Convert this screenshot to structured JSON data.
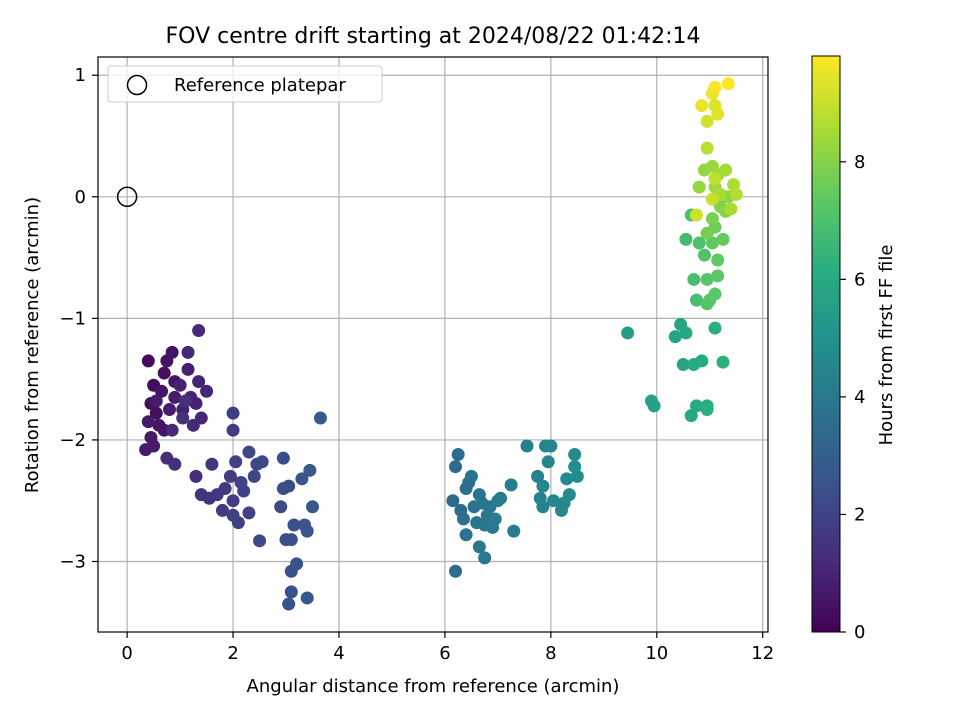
{
  "chart_data": {
    "type": "scatter",
    "title": "FOV centre drift starting at 2024/08/22 01:42:14",
    "xlabel": "Angular distance from reference (arcmin)",
    "ylabel": "Rotation from reference (arcmin)",
    "xlim": [
      -0.55,
      12.1
    ],
    "ylim": [
      -3.58,
      1.15
    ],
    "xticks": [
      0,
      2,
      4,
      6,
      8,
      10,
      12
    ],
    "yticks": [
      -3,
      -2,
      -1,
      0,
      1
    ],
    "grid": true,
    "legend": {
      "position": "top-left",
      "entries": [
        "Reference platepar"
      ]
    },
    "reference_point": {
      "x": 0,
      "y": 0
    },
    "colorbar": {
      "label": "Hours from first FF file",
      "colormap": "viridis",
      "range": [
        0,
        9.8
      ],
      "ticks": [
        0,
        2,
        4,
        6,
        8
      ]
    },
    "points": [
      {
        "x": 0.4,
        "y": -1.35,
        "c": 0.3
      },
      {
        "x": 0.5,
        "y": -1.55,
        "c": 0.3
      },
      {
        "x": 0.45,
        "y": -1.7,
        "c": 0.4
      },
      {
        "x": 0.55,
        "y": -1.78,
        "c": 0.4
      },
      {
        "x": 0.7,
        "y": -1.45,
        "c": 0.4
      },
      {
        "x": 0.75,
        "y": -1.35,
        "c": 0.5
      },
      {
        "x": 0.85,
        "y": -1.28,
        "c": 0.5
      },
      {
        "x": 0.9,
        "y": -1.52,
        "c": 0.5
      },
      {
        "x": 0.65,
        "y": -1.6,
        "c": 0.6
      },
      {
        "x": 0.6,
        "y": -1.88,
        "c": 0.6
      },
      {
        "x": 0.7,
        "y": -1.92,
        "c": 0.6
      },
      {
        "x": 0.4,
        "y": -1.85,
        "c": 0.7
      },
      {
        "x": 0.45,
        "y": -1.98,
        "c": 0.7
      },
      {
        "x": 0.35,
        "y": -2.08,
        "c": 0.7
      },
      {
        "x": 0.5,
        "y": -2.05,
        "c": 0.7
      },
      {
        "x": 0.55,
        "y": -1.68,
        "c": 0.8
      },
      {
        "x": 0.8,
        "y": -1.75,
        "c": 0.8
      },
      {
        "x": 0.9,
        "y": -1.65,
        "c": 0.8
      },
      {
        "x": 1.0,
        "y": -1.55,
        "c": 0.9
      },
      {
        "x": 1.05,
        "y": -1.75,
        "c": 0.9
      },
      {
        "x": 1.15,
        "y": -1.42,
        "c": 0.9
      },
      {
        "x": 1.2,
        "y": -1.65,
        "c": 1.0
      },
      {
        "x": 1.3,
        "y": -1.7,
        "c": 1.0
      },
      {
        "x": 1.35,
        "y": -1.52,
        "c": 1.0
      },
      {
        "x": 1.4,
        "y": -1.82,
        "c": 1.1
      },
      {
        "x": 1.5,
        "y": -1.6,
        "c": 1.1
      },
      {
        "x": 1.15,
        "y": -1.28,
        "c": 1.1
      },
      {
        "x": 1.35,
        "y": -1.1,
        "c": 1.2
      },
      {
        "x": 1.25,
        "y": -1.88,
        "c": 1.2
      },
      {
        "x": 0.85,
        "y": -1.92,
        "c": 1.2
      },
      {
        "x": 0.75,
        "y": -2.15,
        "c": 1.3
      },
      {
        "x": 0.9,
        "y": -2.2,
        "c": 1.3
      },
      {
        "x": 1.3,
        "y": -2.3,
        "c": 1.3
      },
      {
        "x": 1.05,
        "y": -1.82,
        "c": 1.4
      },
      {
        "x": 1.1,
        "y": -1.68,
        "c": 1.4
      },
      {
        "x": 1.4,
        "y": -2.45,
        "c": 1.5
      },
      {
        "x": 1.55,
        "y": -2.48,
        "c": 1.5
      },
      {
        "x": 1.6,
        "y": -2.2,
        "c": 1.6
      },
      {
        "x": 1.7,
        "y": -2.45,
        "c": 1.6
      },
      {
        "x": 1.8,
        "y": -2.58,
        "c": 1.7
      },
      {
        "x": 1.85,
        "y": -2.4,
        "c": 1.7
      },
      {
        "x": 1.95,
        "y": -2.3,
        "c": 1.8
      },
      {
        "x": 2.0,
        "y": -2.5,
        "c": 1.8
      },
      {
        "x": 2.0,
        "y": -1.78,
        "c": 1.8
      },
      {
        "x": 2.0,
        "y": -1.92,
        "c": 1.8
      },
      {
        "x": 2.05,
        "y": -2.18,
        "c": 1.9
      },
      {
        "x": 2.1,
        "y": -2.68,
        "c": 1.9
      },
      {
        "x": 2.0,
        "y": -2.62,
        "c": 1.9
      },
      {
        "x": 2.15,
        "y": -2.35,
        "c": 2.0
      },
      {
        "x": 2.2,
        "y": -2.42,
        "c": 2.0
      },
      {
        "x": 2.3,
        "y": -2.6,
        "c": 2.0
      },
      {
        "x": 2.3,
        "y": -2.1,
        "c": 2.1
      },
      {
        "x": 2.4,
        "y": -2.3,
        "c": 2.1
      },
      {
        "x": 2.45,
        "y": -2.2,
        "c": 2.1
      },
      {
        "x": 2.5,
        "y": -2.83,
        "c": 2.2
      },
      {
        "x": 2.55,
        "y": -2.18,
        "c": 2.2
      },
      {
        "x": 2.9,
        "y": -2.55,
        "c": 2.2
      },
      {
        "x": 2.95,
        "y": -2.4,
        "c": 2.3
      },
      {
        "x": 3.05,
        "y": -2.38,
        "c": 2.3
      },
      {
        "x": 2.95,
        "y": -2.15,
        "c": 2.3
      },
      {
        "x": 3.0,
        "y": -2.82,
        "c": 2.4
      },
      {
        "x": 3.1,
        "y": -2.82,
        "c": 2.4
      },
      {
        "x": 3.1,
        "y": -3.08,
        "c": 2.4
      },
      {
        "x": 3.15,
        "y": -2.7,
        "c": 2.5
      },
      {
        "x": 3.2,
        "y": -3.02,
        "c": 2.5
      },
      {
        "x": 3.05,
        "y": -3.35,
        "c": 2.5
      },
      {
        "x": 3.1,
        "y": -3.25,
        "c": 2.5
      },
      {
        "x": 3.3,
        "y": -2.32,
        "c": 2.6
      },
      {
        "x": 3.35,
        "y": -2.7,
        "c": 2.6
      },
      {
        "x": 3.4,
        "y": -2.75,
        "c": 2.6
      },
      {
        "x": 3.45,
        "y": -2.25,
        "c": 2.7
      },
      {
        "x": 3.5,
        "y": -2.55,
        "c": 2.7
      },
      {
        "x": 3.4,
        "y": -3.3,
        "c": 2.7
      },
      {
        "x": 3.65,
        "y": -1.82,
        "c": 2.8
      },
      {
        "x": 6.15,
        "y": -2.5,
        "c": 3.4
      },
      {
        "x": 6.2,
        "y": -2.22,
        "c": 3.4
      },
      {
        "x": 6.25,
        "y": -2.12,
        "c": 3.5
      },
      {
        "x": 6.2,
        "y": -3.08,
        "c": 3.5
      },
      {
        "x": 6.3,
        "y": -2.58,
        "c": 3.5
      },
      {
        "x": 6.35,
        "y": -2.65,
        "c": 3.6
      },
      {
        "x": 6.4,
        "y": -2.4,
        "c": 3.6
      },
      {
        "x": 6.45,
        "y": -2.35,
        "c": 3.6
      },
      {
        "x": 6.5,
        "y": -2.3,
        "c": 3.7
      },
      {
        "x": 6.4,
        "y": -2.78,
        "c": 3.7
      },
      {
        "x": 6.55,
        "y": -2.55,
        "c": 3.7
      },
      {
        "x": 6.6,
        "y": -2.68,
        "c": 3.8
      },
      {
        "x": 6.65,
        "y": -2.45,
        "c": 3.8
      },
      {
        "x": 6.7,
        "y": -2.52,
        "c": 3.8
      },
      {
        "x": 6.75,
        "y": -2.7,
        "c": 3.9
      },
      {
        "x": 6.8,
        "y": -2.62,
        "c": 3.9
      },
      {
        "x": 6.65,
        "y": -2.88,
        "c": 3.9
      },
      {
        "x": 6.85,
        "y": -2.55,
        "c": 4.0
      },
      {
        "x": 6.75,
        "y": -2.97,
        "c": 4.0
      },
      {
        "x": 6.9,
        "y": -2.72,
        "c": 4.0
      },
      {
        "x": 6.95,
        "y": -2.65,
        "c": 4.1
      },
      {
        "x": 7.0,
        "y": -2.5,
        "c": 4.1
      },
      {
        "x": 7.05,
        "y": -2.48,
        "c": 4.1
      },
      {
        "x": 7.25,
        "y": -2.37,
        "c": 4.2
      },
      {
        "x": 7.3,
        "y": -2.75,
        "c": 4.2
      },
      {
        "x": 7.55,
        "y": -2.05,
        "c": 4.3
      },
      {
        "x": 7.75,
        "y": -2.3,
        "c": 4.3
      },
      {
        "x": 7.8,
        "y": -2.48,
        "c": 4.4
      },
      {
        "x": 7.85,
        "y": -2.55,
        "c": 4.4
      },
      {
        "x": 7.9,
        "y": -2.05,
        "c": 4.4
      },
      {
        "x": 7.85,
        "y": -2.38,
        "c": 4.5
      },
      {
        "x": 7.95,
        "y": -2.18,
        "c": 4.5
      },
      {
        "x": 8.0,
        "y": -2.05,
        "c": 4.5
      },
      {
        "x": 8.05,
        "y": -2.5,
        "c": 4.6
      },
      {
        "x": 8.2,
        "y": -2.58,
        "c": 4.6
      },
      {
        "x": 8.25,
        "y": -2.52,
        "c": 4.6
      },
      {
        "x": 8.3,
        "y": -2.32,
        "c": 4.7
      },
      {
        "x": 8.35,
        "y": -2.45,
        "c": 4.7
      },
      {
        "x": 8.45,
        "y": -2.12,
        "c": 4.7
      },
      {
        "x": 8.45,
        "y": -2.22,
        "c": 4.8
      },
      {
        "x": 8.5,
        "y": -2.3,
        "c": 4.8
      },
      {
        "x": 9.45,
        "y": -1.12,
        "c": 5.5
      },
      {
        "x": 9.9,
        "y": -1.68,
        "c": 5.6
      },
      {
        "x": 9.95,
        "y": -1.72,
        "c": 5.6
      },
      {
        "x": 10.35,
        "y": -1.15,
        "c": 5.7
      },
      {
        "x": 10.45,
        "y": -1.05,
        "c": 5.8
      },
      {
        "x": 10.5,
        "y": -1.38,
        "c": 5.8
      },
      {
        "x": 10.55,
        "y": -1.12,
        "c": 5.9
      },
      {
        "x": 10.65,
        "y": -1.8,
        "c": 5.9
      },
      {
        "x": 10.7,
        "y": -1.38,
        "c": 6.0
      },
      {
        "x": 10.75,
        "y": -1.72,
        "c": 6.0
      },
      {
        "x": 10.85,
        "y": -1.35,
        "c": 6.1
      },
      {
        "x": 10.95,
        "y": -1.72,
        "c": 6.1
      },
      {
        "x": 10.95,
        "y": -1.75,
        "c": 6.2
      },
      {
        "x": 11.1,
        "y": -1.08,
        "c": 6.2
      },
      {
        "x": 11.25,
        "y": -1.36,
        "c": 6.3
      },
      {
        "x": 10.55,
        "y": -0.35,
        "c": 6.8
      },
      {
        "x": 10.7,
        "y": -0.68,
        "c": 6.9
      },
      {
        "x": 10.75,
        "y": -0.85,
        "c": 6.9
      },
      {
        "x": 10.65,
        "y": -0.15,
        "c": 7.0
      },
      {
        "x": 10.8,
        "y": -0.38,
        "c": 7.0
      },
      {
        "x": 10.9,
        "y": -0.48,
        "c": 7.1
      },
      {
        "x": 10.95,
        "y": -0.88,
        "c": 7.1
      },
      {
        "x": 11.0,
        "y": -0.85,
        "c": 7.2
      },
      {
        "x": 10.95,
        "y": -0.68,
        "c": 7.2
      },
      {
        "x": 11.1,
        "y": -0.8,
        "c": 7.3
      },
      {
        "x": 11.15,
        "y": -0.65,
        "c": 7.3
      },
      {
        "x": 11.15,
        "y": -0.52,
        "c": 7.4
      },
      {
        "x": 11.05,
        "y": -0.38,
        "c": 7.4
      },
      {
        "x": 11.25,
        "y": -0.35,
        "c": 7.5
      },
      {
        "x": 11.1,
        "y": -0.25,
        "c": 7.6
      },
      {
        "x": 10.95,
        "y": -0.3,
        "c": 7.7
      },
      {
        "x": 11.05,
        "y": -0.18,
        "c": 7.8
      },
      {
        "x": 11.2,
        "y": -0.08,
        "c": 7.9
      },
      {
        "x": 11.3,
        "y": -0.12,
        "c": 8.0
      },
      {
        "x": 11.35,
        "y": 0.0,
        "c": 8.1
      },
      {
        "x": 10.8,
        "y": 0.08,
        "c": 8.2
      },
      {
        "x": 10.9,
        "y": 0.22,
        "c": 8.2
      },
      {
        "x": 11.05,
        "y": 0.25,
        "c": 8.3
      },
      {
        "x": 11.1,
        "y": 0.08,
        "c": 8.4
      },
      {
        "x": 11.15,
        "y": 0.18,
        "c": 8.4
      },
      {
        "x": 11.2,
        "y": 0.02,
        "c": 8.5
      },
      {
        "x": 11.3,
        "y": 0.22,
        "c": 8.5
      },
      {
        "x": 11.4,
        "y": -0.1,
        "c": 8.6
      },
      {
        "x": 11.45,
        "y": 0.1,
        "c": 8.6
      },
      {
        "x": 11.5,
        "y": 0.02,
        "c": 8.7
      },
      {
        "x": 10.95,
        "y": 0.4,
        "c": 8.8
      },
      {
        "x": 11.1,
        "y": 0.15,
        "c": 8.9
      },
      {
        "x": 11.05,
        "y": -0.02,
        "c": 9.0
      },
      {
        "x": 10.75,
        "y": -0.15,
        "c": 9.1
      },
      {
        "x": 10.95,
        "y": 0.62,
        "c": 9.2
      },
      {
        "x": 11.1,
        "y": 0.75,
        "c": 9.3
      },
      {
        "x": 11.15,
        "y": 0.68,
        "c": 9.4
      },
      {
        "x": 11.05,
        "y": 0.85,
        "c": 9.5
      },
      {
        "x": 10.85,
        "y": 0.75,
        "c": 9.5
      },
      {
        "x": 11.1,
        "y": 0.9,
        "c": 9.7
      },
      {
        "x": 11.35,
        "y": 0.93,
        "c": 9.8
      }
    ]
  }
}
